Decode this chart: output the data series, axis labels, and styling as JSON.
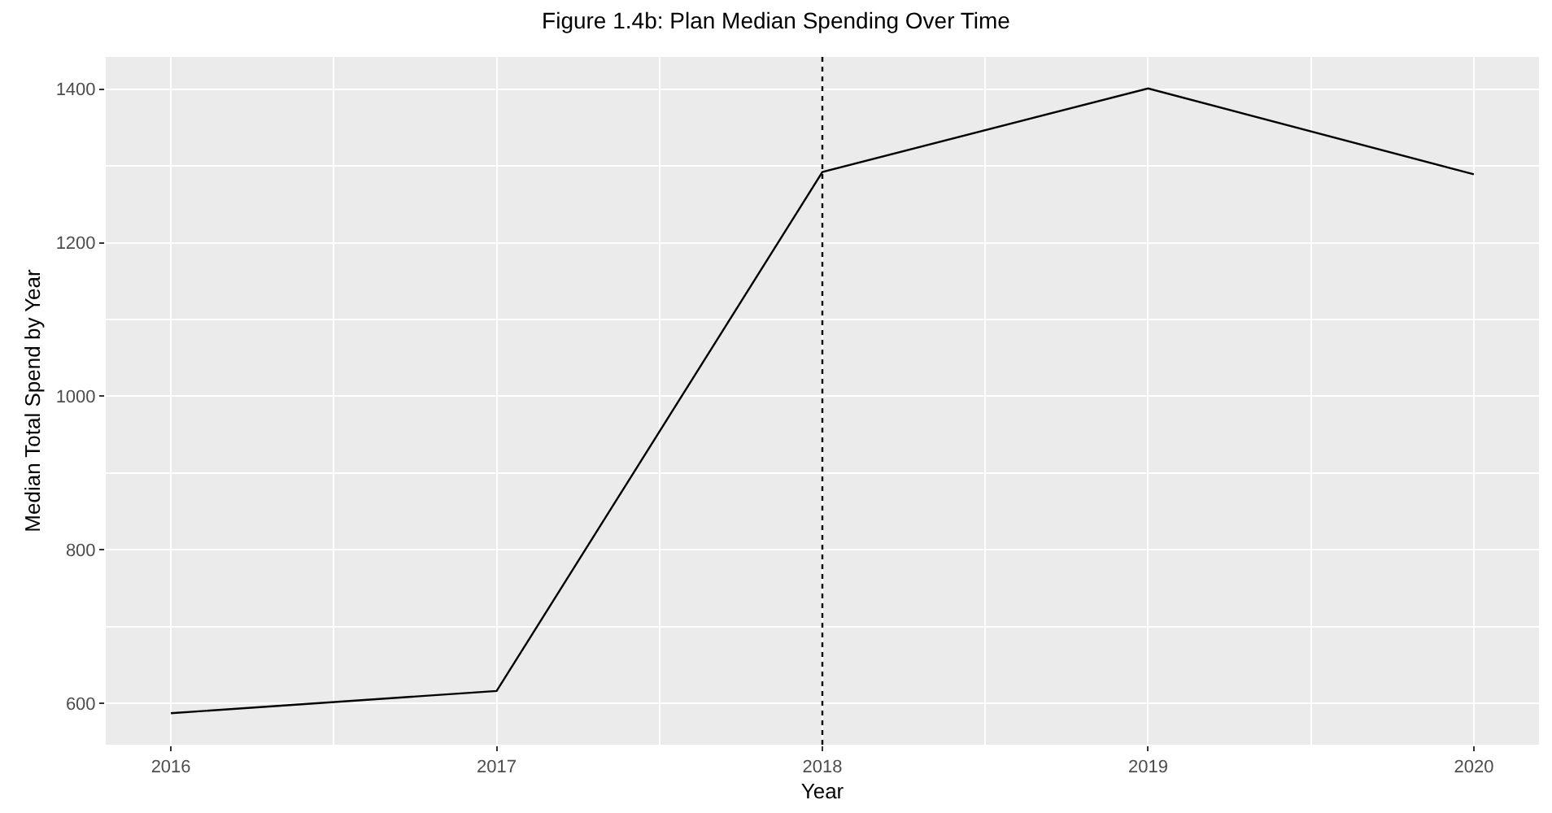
{
  "chart_data": {
    "type": "line",
    "title": "Figure 1.4b: Plan Median Spending Over Time",
    "xlabel": "Year",
    "ylabel": "Median Total Spend by Year",
    "x": [
      2016,
      2017,
      2018,
      2019,
      2020
    ],
    "series": [
      {
        "color": "#000000",
        "values": [
          587,
          616,
          1292,
          1401,
          1289
        ]
      }
    ],
    "xlim": [
      2015.8,
      2020.2
    ],
    "xticks": [
      2016,
      2017,
      2018,
      2019,
      2020
    ],
    "ylim": [
      546,
      1442
    ],
    "yticks": [
      600,
      800,
      1000,
      1200,
      1400
    ],
    "grid": true,
    "marker": "none",
    "line_style": "solid",
    "ref_lines": [
      {
        "axis": "x",
        "value": 2018,
        "line_style": "dotted",
        "color": "#000000"
      }
    ]
  }
}
